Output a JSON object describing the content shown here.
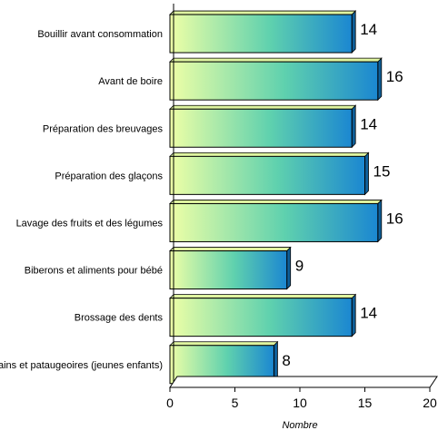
{
  "chart_data": {
    "type": "bar",
    "orientation": "horizontal",
    "title": "",
    "xlabel": "Nombre",
    "ylabel": "",
    "xlim": [
      0,
      20
    ],
    "x_ticks": [
      "0",
      "5",
      "10",
      "15",
      "20"
    ],
    "grid": false,
    "legend": "none",
    "categories": [
      "Bouillir avant consommation",
      "Avant de boire",
      "Préparation des breuvages",
      "Préparation des glaçons",
      "Lavage des fruits et des légumes",
      "Biberons et aliments pour bébé",
      "Brossage des dents",
      "Bains et pataugeoires (jeunes enfants)"
    ],
    "values": [
      14,
      16,
      14,
      15,
      16,
      9,
      14,
      8
    ],
    "data_labels": [
      "14",
      "16",
      "14",
      "15",
      "16",
      "9",
      "14",
      "8"
    ],
    "colors": {
      "bar_gradient_start": "#eeffa6",
      "bar_gradient_mid": "#5fd1ae",
      "bar_gradient_end": "#1b87d1",
      "bar_outline": "#000000",
      "axis": "#000000"
    }
  }
}
